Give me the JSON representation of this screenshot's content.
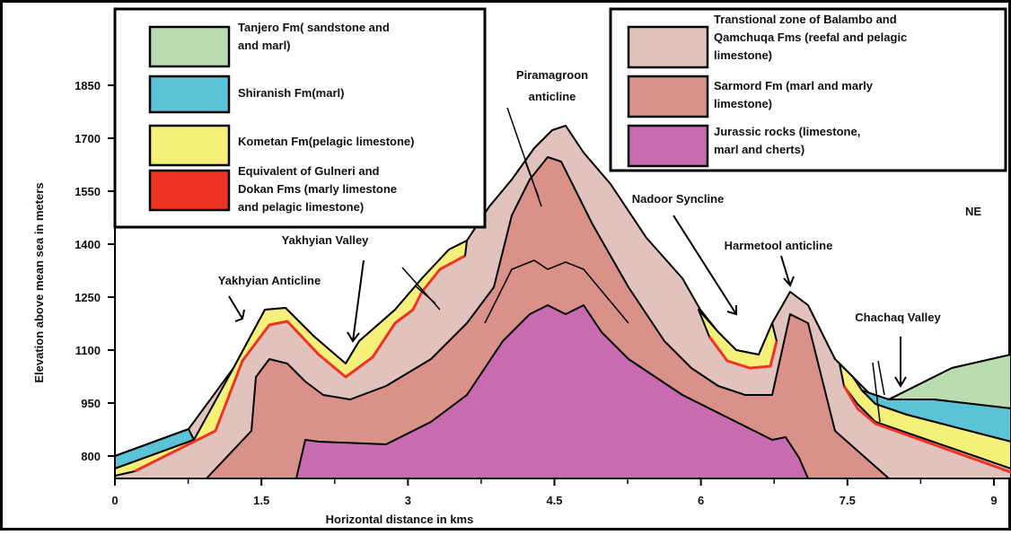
{
  "axes": {
    "y_label": "Elevation above mean sea in meters",
    "x_label": "Horizontal distance in kms",
    "yticks": [
      800,
      950,
      1100,
      1250,
      1400,
      1550,
      1700,
      1850
    ],
    "xticks": [
      0,
      1.5,
      3,
      4.5,
      6,
      7.5,
      9
    ]
  },
  "legend_left": [
    {
      "lines": [
        "Tanjero Fm( sandstone and",
        " and marl)"
      ],
      "color": "#b9ddb0"
    },
    {
      "lines": [
        "Shiranish Fm(marl)"
      ],
      "color": "#5ac3d8"
    },
    {
      "lines": [
        "Kometan Fm(pelagic limestone)"
      ],
      "color": "#f4f07a"
    },
    {
      "lines": [
        "Equivalent  of Gulneri and",
        "Dokan Fms (marly limestone",
        " and pelagic limestone)"
      ],
      "color": "#ee3322"
    }
  ],
  "legend_right": [
    {
      "lines": [
        "Transtional zone  of Balambo and",
        "Qamchuqa Fms (reefal and pelagic",
        "limestone)"
      ],
      "color": "#e2c2bc"
    },
    {
      "lines": [
        "Sarmord Fm (marl and marly",
        "      limestone)"
      ],
      "color": "#d9918a"
    },
    {
      "lines": [
        "Jurassic rocks (limestone,",
        " marl and cherts)"
      ],
      "color": "#c96bb0"
    }
  ],
  "annotations": {
    "piramagroon": [
      "Piramagroon",
      "anticline"
    ],
    "yakhyian_valley": "Yakhyian Valley",
    "yakhyian_anticline": "Yakhyian Anticline",
    "nadoor_syncline": "Nadoor Syncline",
    "harmetool_anticline": "Harmetool anticline",
    "chachaq_valley": "Chachaq Valley",
    "direction": "NE"
  }
}
